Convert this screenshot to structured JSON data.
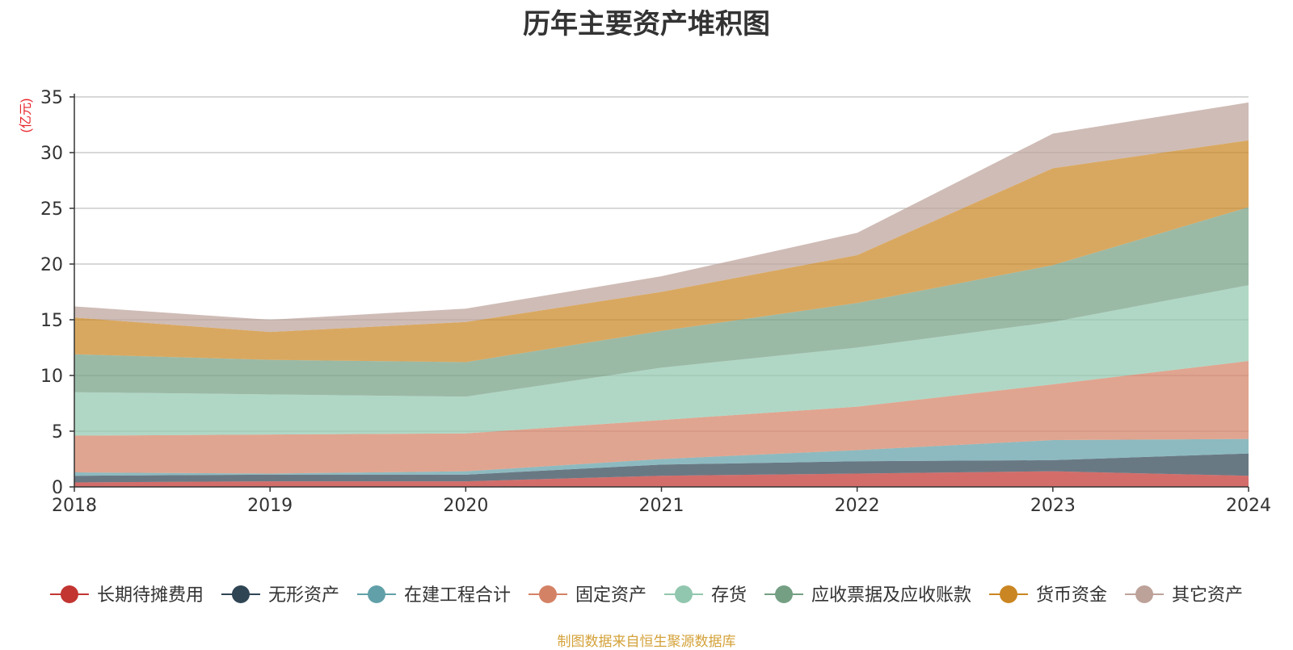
{
  "chart_data": {
    "type": "area",
    "stacked": true,
    "title": "历年主要资产堆积图",
    "unit_label": "(亿元)",
    "x": [
      "2018",
      "2019",
      "2020",
      "2021",
      "2022",
      "2023",
      "2024"
    ],
    "ylim": [
      0,
      35
    ],
    "yticks": [
      0,
      5,
      10,
      15,
      20,
      25,
      30,
      35
    ],
    "grid": true,
    "legend_position": "bottom",
    "series": [
      {
        "name": "长期待摊费用",
        "color": "#c23531",
        "values": [
          0.4,
          0.5,
          0.5,
          1.0,
          1.2,
          1.4,
          1.0
        ]
      },
      {
        "name": "无形资产",
        "color": "#2f4554",
        "values": [
          0.6,
          0.6,
          0.6,
          1.0,
          1.1,
          1.0,
          2.0
        ]
      },
      {
        "name": "在建工程合计",
        "color": "#61a0a8",
        "values": [
          0.3,
          0.1,
          0.3,
          0.5,
          1.0,
          1.8,
          1.3
        ]
      },
      {
        "name": "固定资产",
        "color": "#d48265",
        "values": [
          3.3,
          3.5,
          3.4,
          3.5,
          3.9,
          5.0,
          7.0
        ]
      },
      {
        "name": "存货",
        "color": "#91c7ae",
        "values": [
          3.9,
          3.6,
          3.3,
          4.7,
          5.3,
          5.6,
          6.8
        ]
      },
      {
        "name": "应收票据及应收账款",
        "color": "#749f83",
        "values": [
          3.4,
          3.1,
          3.1,
          3.3,
          4.0,
          5.1,
          7.0
        ]
      },
      {
        "name": "货币资金",
        "color": "#ca8622",
        "values": [
          3.3,
          2.5,
          3.6,
          3.5,
          4.3,
          8.7,
          6.0
        ]
      },
      {
        "name": "其它资产",
        "color": "#bda29a",
        "values": [
          1.0,
          1.1,
          1.2,
          1.4,
          2.0,
          3.1,
          3.4
        ]
      }
    ]
  },
  "footer": {
    "source": "制图数据来自恒生聚源数据库"
  }
}
